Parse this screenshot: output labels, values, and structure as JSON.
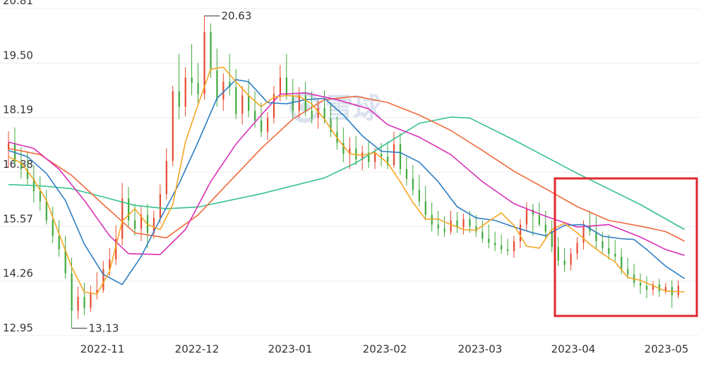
{
  "chart_data": {
    "type": "candlestick",
    "yticks": [
      "20.81",
      "19.50",
      "18.19",
      "16.88",
      "15.57",
      "14.26",
      "12.95"
    ],
    "ylim": [
      12.95,
      20.81
    ],
    "xticks": [
      "2022-11",
      "2022-12",
      "2023-01",
      "2023-02",
      "2023-03",
      "2023-04",
      "2023-05"
    ],
    "annotations": [
      {
        "label": "20.63",
        "value": 20.63,
        "kind": "high"
      },
      {
        "label": "13.13",
        "value": 13.13,
        "kind": "low"
      }
    ],
    "watermark": "雪球",
    "colors": {
      "up": "#e8492f",
      "down": "#3daa3b",
      "ma5": "#f5a623",
      "ma10": "#2d7ec4",
      "ma20": "#d930b6",
      "ma30": "#f06a3c",
      "ma60": "#36c28e",
      "highlight": "#e0282d",
      "grid": "#ececec"
    },
    "series": [
      {
        "color_key": "ma60",
        "values": [
          [
            0,
            16.58
          ],
          [
            5,
            16.55
          ],
          [
            10,
            16.48
          ],
          [
            15,
            16.28
          ],
          [
            20,
            16.08
          ],
          [
            25,
            16.0
          ],
          [
            30,
            16.04
          ],
          [
            40,
            16.36
          ],
          [
            50,
            16.74
          ],
          [
            55,
            17.1
          ],
          [
            60,
            17.58
          ],
          [
            65,
            18.05
          ],
          [
            70,
            18.2
          ],
          [
            73,
            18.18
          ],
          [
            80,
            17.65
          ],
          [
            90,
            16.85
          ],
          [
            100,
            16.1
          ],
          [
            107,
            15.5
          ]
        ]
      },
      {
        "color_key": "ma30",
        "values": [
          [
            0,
            17.45
          ],
          [
            5,
            17.3
          ],
          [
            10,
            16.8
          ],
          [
            15,
            16.1
          ],
          [
            20,
            15.42
          ],
          [
            25,
            15.3
          ],
          [
            30,
            15.85
          ],
          [
            35,
            16.65
          ],
          [
            40,
            17.45
          ],
          [
            45,
            18.15
          ],
          [
            50,
            18.62
          ],
          [
            55,
            18.7
          ],
          [
            60,
            18.55
          ],
          [
            65,
            18.25
          ],
          [
            70,
            17.88
          ],
          [
            75,
            17.4
          ],
          [
            80,
            16.9
          ],
          [
            85,
            16.48
          ],
          [
            90,
            16.05
          ],
          [
            95,
            15.72
          ],
          [
            100,
            15.58
          ],
          [
            104,
            15.45
          ],
          [
            107,
            15.22
          ]
        ]
      },
      {
        "color_key": "ma20",
        "values": [
          [
            0,
            17.6
          ],
          [
            4,
            17.45
          ],
          [
            8,
            16.95
          ],
          [
            12,
            16.2
          ],
          [
            16,
            15.35
          ],
          [
            19,
            14.92
          ],
          [
            24,
            14.9
          ],
          [
            28,
            15.5
          ],
          [
            32,
            16.65
          ],
          [
            36,
            17.55
          ],
          [
            40,
            18.25
          ],
          [
            43,
            18.75
          ],
          [
            47,
            18.78
          ],
          [
            52,
            18.62
          ],
          [
            57,
            18.4
          ],
          [
            60,
            18.02
          ],
          [
            65,
            17.72
          ],
          [
            70,
            17.3
          ],
          [
            75,
            16.65
          ],
          [
            80,
            16.12
          ],
          [
            85,
            15.82
          ],
          [
            90,
            15.56
          ],
          [
            95,
            15.62
          ],
          [
            100,
            15.32
          ],
          [
            104,
            15.02
          ],
          [
            107,
            14.88
          ]
        ]
      },
      {
        "color_key": "ma10",
        "values": [
          [
            0,
            17.4
          ],
          [
            3,
            17.25
          ],
          [
            6,
            16.85
          ],
          [
            9,
            16.2
          ],
          [
            12,
            15.15
          ],
          [
            15,
            14.42
          ],
          [
            18,
            14.18
          ],
          [
            21,
            14.85
          ],
          [
            24,
            15.75
          ],
          [
            27,
            16.6
          ],
          [
            30,
            17.6
          ],
          [
            33,
            18.65
          ],
          [
            36,
            19.1
          ],
          [
            38,
            19.05
          ],
          [
            41,
            18.55
          ],
          [
            44,
            18.52
          ],
          [
            47,
            18.62
          ],
          [
            50,
            18.65
          ],
          [
            53,
            18.25
          ],
          [
            56,
            17.75
          ],
          [
            59,
            17.38
          ],
          [
            62,
            17.35
          ],
          [
            65,
            17.12
          ],
          [
            68,
            16.65
          ],
          [
            71,
            16.05
          ],
          [
            74,
            15.78
          ],
          [
            77,
            15.72
          ],
          [
            80,
            15.56
          ],
          [
            83,
            15.42
          ],
          [
            85,
            15.35
          ],
          [
            88,
            15.6
          ],
          [
            91,
            15.62
          ],
          [
            94,
            15.34
          ],
          [
            97,
            15.28
          ],
          [
            99,
            15.26
          ],
          [
            101,
            15.02
          ],
          [
            104,
            14.62
          ],
          [
            107,
            14.32
          ]
        ]
      },
      {
        "color_key": "ma5",
        "values": [
          [
            0,
            17.25
          ],
          [
            2,
            17.1
          ],
          [
            4,
            16.7
          ],
          [
            6,
            16.2
          ],
          [
            8,
            15.4
          ],
          [
            10,
            14.6
          ],
          [
            12,
            14.0
          ],
          [
            14,
            13.95
          ],
          [
            16,
            14.5
          ],
          [
            18,
            15.7
          ],
          [
            20,
            16.0
          ],
          [
            22,
            15.62
          ],
          [
            24,
            15.5
          ],
          [
            26,
            16.1
          ],
          [
            28,
            17.6
          ],
          [
            30,
            18.5
          ],
          [
            32,
            19.35
          ],
          [
            34,
            19.4
          ],
          [
            36,
            19.05
          ],
          [
            38,
            18.72
          ],
          [
            40,
            18.45
          ],
          [
            42,
            18.68
          ],
          [
            44,
            18.72
          ],
          [
            46,
            18.7
          ],
          [
            48,
            18.52
          ],
          [
            50,
            18.15
          ],
          [
            52,
            17.7
          ],
          [
            54,
            17.32
          ],
          [
            56,
            17.28
          ],
          [
            58,
            17.35
          ],
          [
            60,
            17.1
          ],
          [
            62,
            16.65
          ],
          [
            64,
            16.15
          ],
          [
            66,
            15.75
          ],
          [
            68,
            15.75
          ],
          [
            70,
            15.62
          ],
          [
            72,
            15.5
          ],
          [
            74,
            15.48
          ],
          [
            76,
            15.7
          ],
          [
            78,
            15.9
          ],
          [
            80,
            15.6
          ],
          [
            82,
            15.1
          ],
          [
            84,
            15.05
          ],
          [
            86,
            15.5
          ],
          [
            88,
            15.65
          ],
          [
            90,
            15.42
          ],
          [
            92,
            15.15
          ],
          [
            94,
            14.92
          ],
          [
            96,
            14.72
          ],
          [
            98,
            14.35
          ],
          [
            100,
            14.28
          ],
          [
            102,
            14.15
          ],
          [
            104,
            14.02
          ],
          [
            107,
            14.0
          ]
        ]
      }
    ],
    "candles": [
      [
        17.42,
        17.86,
        16.98,
        17.58
      ],
      [
        17.58,
        17.95,
        17.05,
        17.12
      ],
      [
        17.12,
        17.48,
        16.72,
        16.95
      ],
      [
        16.95,
        17.35,
        16.55,
        16.72
      ],
      [
        16.72,
        17.05,
        16.15,
        16.42
      ],
      [
        16.42,
        16.78,
        15.95,
        16.18
      ],
      [
        16.18,
        16.45,
        15.62,
        15.72
      ],
      [
        15.72,
        16.05,
        15.18,
        15.35
      ],
      [
        15.35,
        15.72,
        14.85,
        15.02
      ],
      [
        15.02,
        15.35,
        14.32,
        14.45
      ],
      [
        14.45,
        14.82,
        13.13,
        13.55
      ],
      [
        13.55,
        14.12,
        13.35,
        13.88
      ],
      [
        13.88,
        14.22,
        13.45,
        13.62
      ],
      [
        13.62,
        14.15,
        13.52,
        13.98
      ],
      [
        13.98,
        14.48,
        13.82,
        14.05
      ],
      [
        14.05,
        14.75,
        13.98,
        14.55
      ],
      [
        14.55,
        15.05,
        14.38,
        14.78
      ],
      [
        14.78,
        15.6,
        14.65,
        15.28
      ],
      [
        15.28,
        16.62,
        15.12,
        16.25
      ],
      [
        16.25,
        16.52,
        15.58,
        15.72
      ],
      [
        15.72,
        16.12,
        15.35,
        15.52
      ],
      [
        15.52,
        16.05,
        15.22,
        15.85
      ],
      [
        15.85,
        16.12,
        15.05,
        15.42
      ],
      [
        15.42,
        15.95,
        15.28,
        15.78
      ],
      [
        15.78,
        16.58,
        15.65,
        16.35
      ],
      [
        16.35,
        17.45,
        16.22,
        17.15
      ],
      [
        17.15,
        18.95,
        17.02,
        18.82
      ],
      [
        18.82,
        19.72,
        18.15,
        18.45
      ],
      [
        18.45,
        19.4,
        18.22,
        19.15
      ],
      [
        19.15,
        19.95,
        18.72,
        19.02
      ],
      [
        19.02,
        19.5,
        18.55,
        18.75
      ],
      [
        18.75,
        20.63,
        18.62,
        20.25
      ],
      [
        20.25,
        20.45,
        19.15,
        19.32
      ],
      [
        19.32,
        19.85,
        18.45,
        18.62
      ],
      [
        18.62,
        19.25,
        18.35,
        19.05
      ],
      [
        19.05,
        19.72,
        18.72,
        18.92
      ],
      [
        18.92,
        19.35,
        18.15,
        18.28
      ],
      [
        18.28,
        18.95,
        18.02,
        18.72
      ],
      [
        18.72,
        19.12,
        18.2,
        18.35
      ],
      [
        18.35,
        18.82,
        17.95,
        18.12
      ],
      [
        18.12,
        18.55,
        17.72,
        17.85
      ],
      [
        17.85,
        18.32,
        17.65,
        18.18
      ],
      [
        18.18,
        18.95,
        18.05,
        18.75
      ],
      [
        18.75,
        19.45,
        18.58,
        19.15
      ],
      [
        19.15,
        19.72,
        18.62,
        18.72
      ],
      [
        18.72,
        19.12,
        18.15,
        18.35
      ],
      [
        18.35,
        18.92,
        18.18,
        18.72
      ],
      [
        18.72,
        19.05,
        18.22,
        18.35
      ],
      [
        18.35,
        18.82,
        18.05,
        18.18
      ],
      [
        18.18,
        18.62,
        17.92,
        18.42
      ],
      [
        18.42,
        18.85,
        18.05,
        18.15
      ],
      [
        18.15,
        18.55,
        17.72,
        17.85
      ],
      [
        17.85,
        18.22,
        17.42,
        17.58
      ],
      [
        17.58,
        17.95,
        17.12,
        17.32
      ],
      [
        17.32,
        17.72,
        16.95,
        17.45
      ],
      [
        17.45,
        17.75,
        17.05,
        17.18
      ],
      [
        17.18,
        17.52,
        16.92,
        17.35
      ],
      [
        17.35,
        17.62,
        16.98,
        17.12
      ],
      [
        17.12,
        17.45,
        16.95,
        17.32
      ],
      [
        17.32,
        17.58,
        17.02,
        17.25
      ],
      [
        17.25,
        17.62,
        16.95,
        17.05
      ],
      [
        17.05,
        17.85,
        16.98,
        17.55
      ],
      [
        17.55,
        17.82,
        16.82,
        16.95
      ],
      [
        16.95,
        17.25,
        16.55,
        16.72
      ],
      [
        16.72,
        17.05,
        16.32,
        16.45
      ],
      [
        16.45,
        16.82,
        16.05,
        16.18
      ],
      [
        16.18,
        16.55,
        15.72,
        15.85
      ],
      [
        15.85,
        16.15,
        15.45,
        15.62
      ],
      [
        15.62,
        15.95,
        15.35,
        15.52
      ],
      [
        15.52,
        15.82,
        15.32,
        15.45
      ],
      [
        15.45,
        15.95,
        15.38,
        15.72
      ],
      [
        15.72,
        15.92,
        15.42,
        15.55
      ],
      [
        15.55,
        15.88,
        15.38,
        15.75
      ],
      [
        15.75,
        15.95,
        15.42,
        15.58
      ],
      [
        15.58,
        15.85,
        15.32,
        15.45
      ],
      [
        15.45,
        15.72,
        15.18,
        15.28
      ],
      [
        15.28,
        15.62,
        15.05,
        15.18
      ],
      [
        15.18,
        15.45,
        14.98,
        15.12
      ],
      [
        15.12,
        15.38,
        14.92,
        15.02
      ],
      [
        15.02,
        15.28,
        14.88,
        14.98
      ],
      [
        14.98,
        15.35,
        14.82,
        15.22
      ],
      [
        15.22,
        15.75,
        15.05,
        15.62
      ],
      [
        15.62,
        16.15,
        15.48,
        15.98
      ],
      [
        15.98,
        16.12,
        15.35,
        15.85
      ],
      [
        15.85,
        16.15,
        15.58,
        15.62
      ],
      [
        15.62,
        15.95,
        15.28,
        15.45
      ],
      [
        15.45,
        15.72,
        14.95,
        15.08
      ],
      [
        15.08,
        15.32,
        14.62,
        14.75
      ],
      [
        14.75,
        15.05,
        14.48,
        14.65
      ],
      [
        14.65,
        15.05,
        14.52,
        14.92
      ],
      [
        14.92,
        15.32,
        14.78,
        15.18
      ],
      [
        15.18,
        15.72,
        15.02,
        15.58
      ],
      [
        15.58,
        15.95,
        15.35,
        15.45
      ],
      [
        15.45,
        15.82,
        15.02,
        15.22
      ],
      [
        15.22,
        15.45,
        14.92,
        15.05
      ],
      [
        15.05,
        15.38,
        14.78,
        14.92
      ],
      [
        14.92,
        15.25,
        14.72,
        14.85
      ],
      [
        14.85,
        15.05,
        14.42,
        14.55
      ],
      [
        14.55,
        14.82,
        14.32,
        14.42
      ],
      [
        14.42,
        14.68,
        14.12,
        14.22
      ],
      [
        14.22,
        14.45,
        13.95,
        14.15
      ],
      [
        14.15,
        14.38,
        13.85,
        14.05
      ],
      [
        14.05,
        14.25,
        13.92,
        14.18
      ],
      [
        14.18,
        14.32,
        13.88,
        14.02
      ],
      [
        14.02,
        14.22,
        13.95,
        14.12
      ],
      [
        14.12,
        14.28,
        13.62,
        13.92
      ],
      [
        13.92,
        14.28,
        13.85,
        14.15
      ]
    ]
  }
}
